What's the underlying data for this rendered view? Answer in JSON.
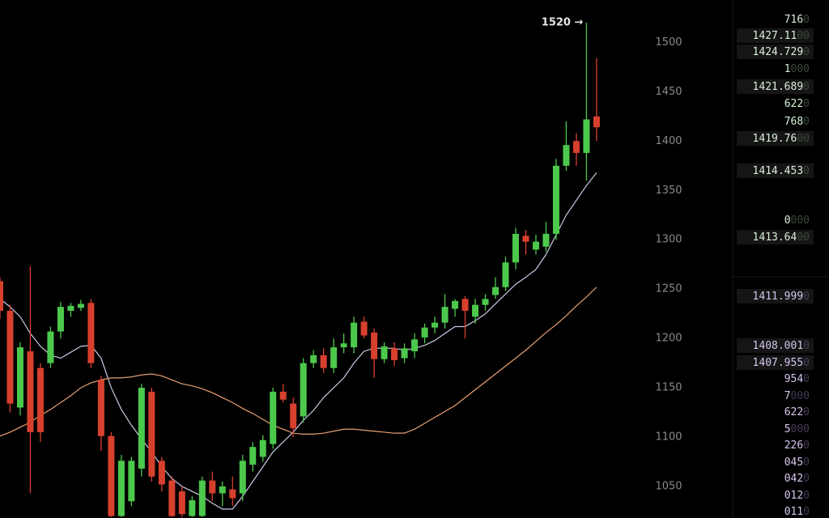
{
  "chart_data": {
    "type": "candlestick",
    "open": [
      1258,
      1228,
      1130,
      1187,
      1170,
      1175,
      1207,
      1228,
      1231,
      1236,
      1158,
      1101,
      1020,
      1035,
      1068,
      1146,
      1076,
      1056,
      1045,
      1020,
      1020,
      1056,
      1043,
      1047,
      1043,
      1072,
      1080,
      1093,
      1146,
      1134,
      1121,
      1175,
      1183,
      1170,
      1191,
      1191,
      1217,
      1206,
      1179,
      1190,
      1180,
      1187,
      1201,
      1211,
      1216,
      1230,
      1240,
      1222,
      1234,
      1244,
      1252,
      1277,
      1304,
      1290,
      1293,
      1306,
      1375,
      1400,
      1388,
      1425
    ],
    "high": [
      1262,
      1234,
      1196,
      1273,
      1175,
      1212,
      1237,
      1236,
      1239,
      1240,
      1162,
      1105,
      1082,
      1080,
      1154,
      1150,
      1080,
      1060,
      1050,
      1040,
      1060,
      1065,
      1055,
      1060,
      1082,
      1095,
      1102,
      1150,
      1154,
      1140,
      1180,
      1188,
      1190,
      1200,
      1205,
      1222,
      1222,
      1210,
      1196,
      1196,
      1195,
      1205,
      1215,
      1222,
      1245,
      1240,
      1243,
      1240,
      1245,
      1262,
      1283,
      1312,
      1310,
      1305,
      1318,
      1382,
      1420,
      1408,
      1520,
      1484
    ],
    "low": [
      1220,
      1125,
      1122,
      1043,
      1095,
      1170,
      1200,
      1222,
      1228,
      1170,
      1086,
      1019,
      1019,
      1030,
      1060,
      1055,
      1045,
      1019,
      1019,
      1019,
      1019,
      1035,
      1030,
      1030,
      1035,
      1065,
      1075,
      1088,
      1135,
      1100,
      1115,
      1170,
      1165,
      1165,
      1185,
      1185,
      1200,
      1160,
      1175,
      1172,
      1175,
      1180,
      1195,
      1205,
      1210,
      1222,
      1200,
      1215,
      1228,
      1240,
      1248,
      1270,
      1285,
      1285,
      1288,
      1300,
      1370,
      1375,
      1360,
      1400
    ],
    "close": [
      1228,
      1134,
      1191,
      1105,
      1105,
      1207,
      1232,
      1233,
      1235,
      1175,
      1101,
      1020,
      1076,
      1076,
      1150,
      1060,
      1052,
      1020,
      1022,
      1036,
      1056,
      1043,
      1050,
      1038,
      1076,
      1090,
      1097,
      1146,
      1138,
      1109,
      1175,
      1183,
      1170,
      1191,
      1195,
      1216,
      1203,
      1179,
      1192,
      1178,
      1190,
      1199,
      1211,
      1216,
      1232,
      1238,
      1228,
      1234,
      1240,
      1252,
      1277,
      1306,
      1298,
      1298,
      1306,
      1375,
      1396,
      1388,
      1422,
      1414
    ],
    "up_color": "#4cc94c",
    "down_color": "#d8402e",
    "lines": [
      {
        "color": "#c9cbe6",
        "values": [
          1240,
          1232,
          1222,
          1205,
          1192,
          1183,
          1180,
          1186,
          1192,
          1193,
          1180,
          1150,
          1128,
          1112,
          1098,
          1085,
          1070,
          1058,
          1050,
          1045,
          1040,
          1033,
          1027,
          1027,
          1040,
          1055,
          1070,
          1085,
          1095,
          1105,
          1117,
          1127,
          1140,
          1150,
          1160,
          1175,
          1187,
          1190,
          1190,
          1190,
          1188,
          1190,
          1193,
          1198,
          1205,
          1212,
          1212,
          1218,
          1225,
          1235,
          1245,
          1255,
          1262,
          1270,
          1285,
          1305,
          1325,
          1340,
          1355,
          1368
        ]
      },
      {
        "color": "#e8a070",
        "values": [
          1101,
          1105,
          1110,
          1115,
          1122,
          1128,
          1135,
          1142,
          1150,
          1155,
          1158,
          1160,
          1160,
          1161,
          1163,
          1164,
          1162,
          1158,
          1154,
          1152,
          1149,
          1145,
          1140,
          1135,
          1129,
          1124,
          1118,
          1112,
          1108,
          1104,
          1103,
          1103,
          1104,
          1106,
          1108,
          1108,
          1107,
          1106,
          1105,
          1104,
          1104,
          1108,
          1114,
          1120,
          1126,
          1132,
          1140,
          1148,
          1156,
          1164,
          1172,
          1180,
          1188,
          1197,
          1206,
          1214,
          1223,
          1233,
          1242,
          1252
        ]
      }
    ],
    "annotation": "1520 →",
    "ylim": [
      1018,
      1543
    ],
    "yticks": [
      1050,
      1100,
      1150,
      1200,
      1250,
      1300,
      1350,
      1400,
      1450,
      1500
    ]
  },
  "order_book": {
    "asks": [
      {
        "text": "716",
        "dim": "0"
      },
      {
        "text": "1427.11",
        "dim": "00"
      },
      {
        "text": "1424.729",
        "dim": "0"
      },
      {
        "text": "1",
        "dim": "000"
      },
      {
        "text": "1421.689",
        "dim": "0"
      },
      {
        "text": "622",
        "dim": "0"
      },
      {
        "text": "768",
        "dim": "0"
      },
      {
        "text": "1419.76",
        "dim": "00"
      },
      {
        "text": "1414.453",
        "dim": "0"
      },
      {
        "text": "0",
        "dim": "000"
      },
      {
        "text": "1413.64",
        "dim": "00"
      }
    ],
    "bids": [
      {
        "text": "1411.999",
        "dim": "0"
      },
      {
        "text": "1408.001",
        "dim": "0"
      },
      {
        "text": "1407.955",
        "dim": "0"
      },
      {
        "text": "954",
        "dim": "0"
      },
      {
        "text": "7",
        "dim": "000"
      },
      {
        "text": "622",
        "dim": "0"
      },
      {
        "text": "5",
        "dim": "000"
      },
      {
        "text": "226",
        "dim": "0"
      },
      {
        "text": "045",
        "dim": "0"
      },
      {
        "text": "042",
        "dim": "0"
      },
      {
        "text": "012",
        "dim": "0"
      },
      {
        "text": "011",
        "dim": "0"
      }
    ]
  }
}
